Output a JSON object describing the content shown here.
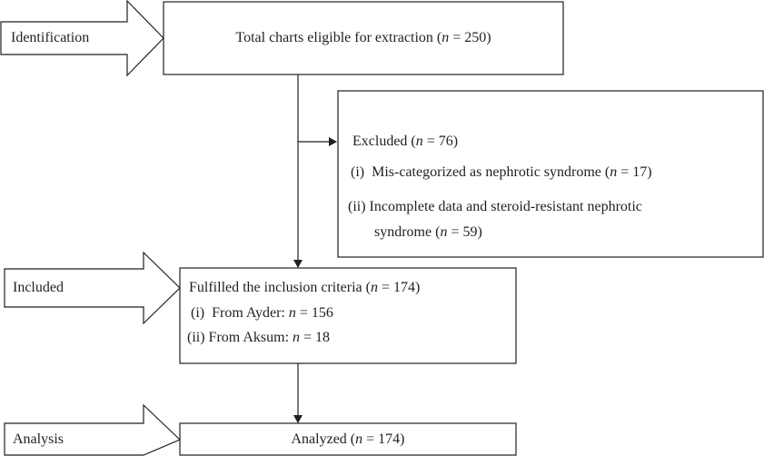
{
  "stages": [
    "Identification",
    "Included",
    "Analysis"
  ],
  "boxes": {
    "eligible": "Total charts eligible for extraction (n = 250)",
    "excluded": {
      "title": "Excluded (n = 76)",
      "items": [
        "(i)  Mis-categorized as nephrotic syndrome (n = 17)",
        "(ii) Incomplete data and steroid-resistant nephrotic",
        "syndrome (n = 59)"
      ]
    },
    "included": {
      "title": "Fulfilled the inclusion criteria (n = 174)",
      "items": [
        "(i)  From Ayder: n = 156",
        "(ii) From Aksum: n = 18"
      ]
    },
    "analyzed": "Analyzed (n = 174)"
  }
}
